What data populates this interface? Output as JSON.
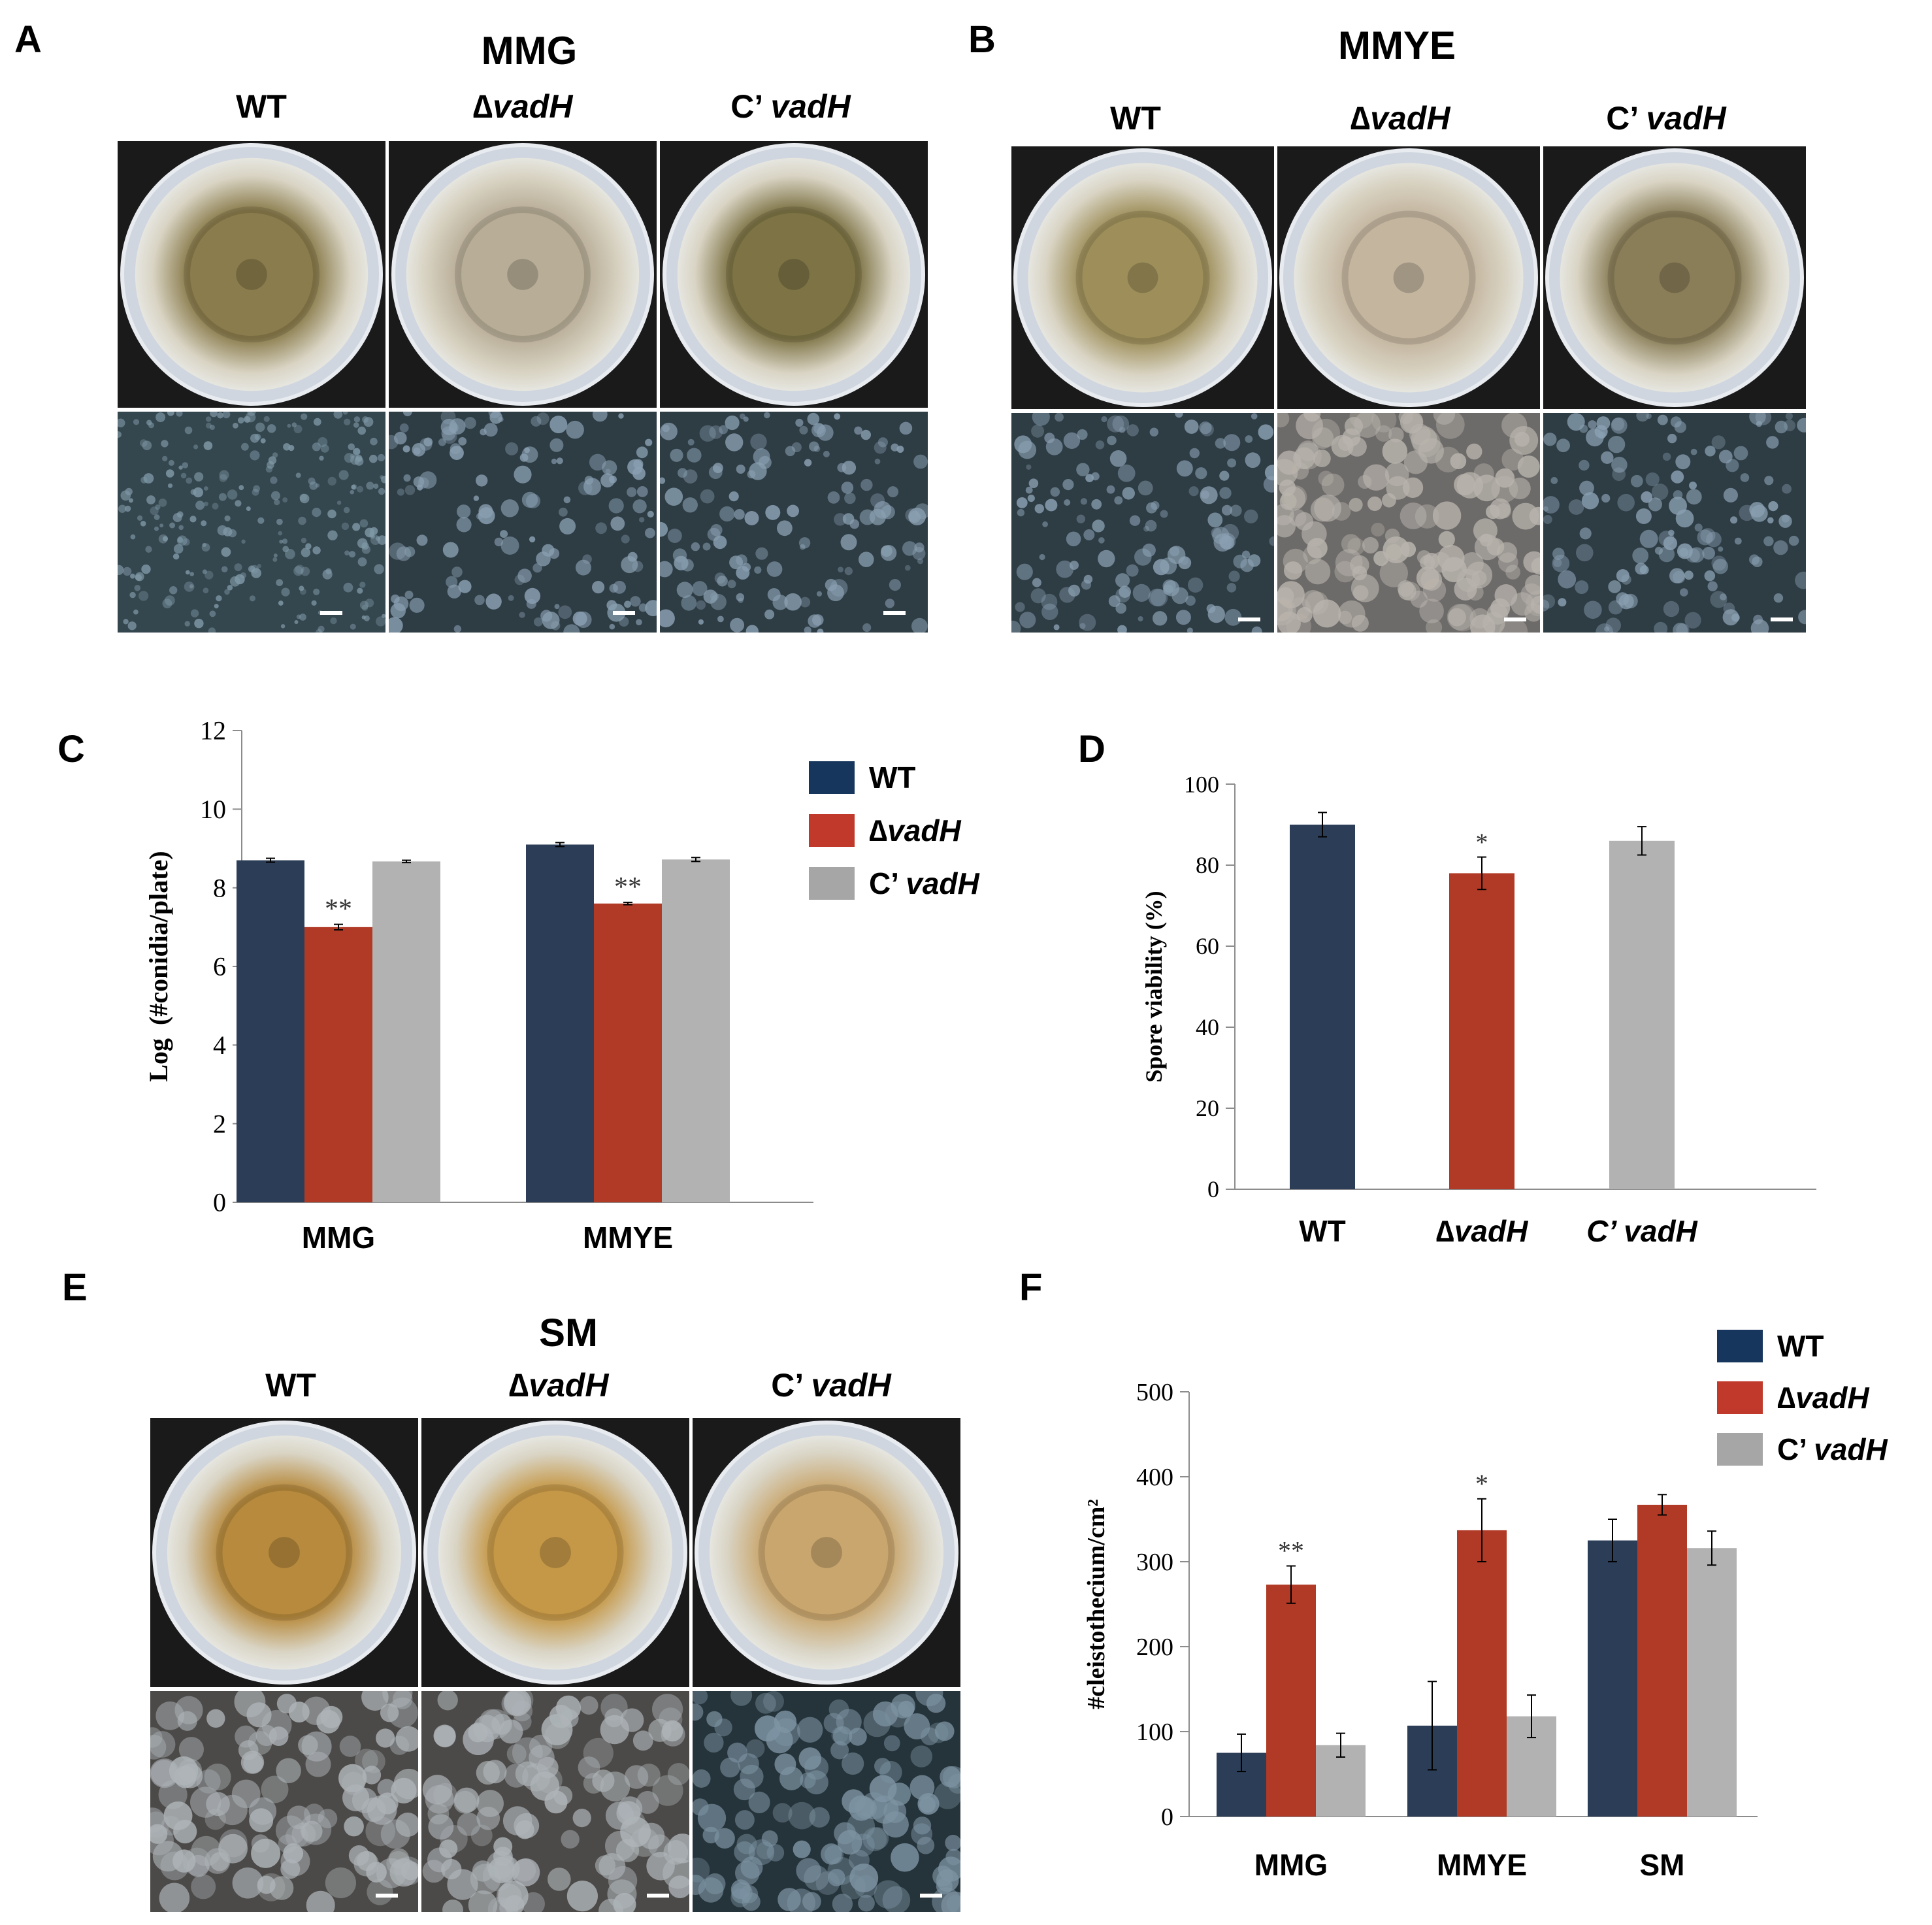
{
  "panel_labels": {
    "A": "A",
    "B": "B",
    "C": "C",
    "D": "D",
    "E": "E",
    "F": "F"
  },
  "strains": {
    "wt": "WT",
    "delta_prefix": "∆",
    "delta_gene": "vadH",
    "comp_prefix": "C’",
    "comp_gene": "vadH"
  },
  "panel_a": {
    "medium": "MMG",
    "plate_colors": [
      "#8a7c4c",
      "#b8ad97",
      "#7d7345"
    ]
  },
  "panel_b": {
    "medium": "MMYE",
    "plate_colors": [
      "#9e8f5a",
      "#c4b59f",
      "#8a7e58"
    ]
  },
  "panel_e": {
    "medium": "SM",
    "plate_colors": [
      "#b78a3d",
      "#c59847",
      "#c9a66d"
    ]
  },
  "colors": {
    "wt": "#2c3e57",
    "delta": "#b03a26",
    "comp": "#b2b2b2"
  },
  "chart_data": [
    {
      "panel": "C",
      "type": "bar",
      "categories": [
        "MMG",
        "MMYE"
      ],
      "series": [
        {
          "name": "WT",
          "values": [
            8.7,
            9.1
          ],
          "errors": [
            0.05,
            0.05
          ]
        },
        {
          "name": "∆vadH",
          "values": [
            7.0,
            7.6
          ],
          "errors": [
            0.07,
            0.03
          ]
        },
        {
          "name": "C’ vadH",
          "values": [
            8.67,
            8.72
          ],
          "errors": [
            0.03,
            0.05
          ]
        }
      ],
      "significance": [
        [
          "",
          "**",
          ""
        ],
        [
          "",
          "**",
          ""
        ]
      ],
      "ylabel": "Log  (#conidia/plate)",
      "ylim": [
        0,
        12
      ],
      "yticks": [
        "0",
        "2",
        "4",
        "6",
        "8",
        "10",
        "12"
      ],
      "legend": "right"
    },
    {
      "panel": "D",
      "type": "bar",
      "categories": [
        "WT",
        "∆vadH",
        "C’ vadH"
      ],
      "values": [
        90,
        78,
        86
      ],
      "errors": [
        3,
        4,
        3.5
      ],
      "significance": [
        "",
        "*",
        ""
      ],
      "ylabel": "Spore viability (%)",
      "ylim": [
        0,
        100
      ],
      "yticks": [
        "0",
        "20",
        "40",
        "60",
        "80",
        "100"
      ]
    },
    {
      "panel": "F",
      "type": "bar",
      "categories": [
        "MMG",
        "MMYE",
        "SM"
      ],
      "series": [
        {
          "name": "WT",
          "values": [
            75,
            107,
            325
          ],
          "errors": [
            22,
            52,
            25
          ]
        },
        {
          "name": "∆vadH",
          "values": [
            273,
            337,
            367
          ],
          "errors": [
            22,
            37,
            12
          ]
        },
        {
          "name": "C’ vadH",
          "values": [
            84,
            118,
            316
          ],
          "errors": [
            14,
            25,
            20
          ]
        }
      ],
      "significance": [
        [
          "",
          "**",
          ""
        ],
        [
          "",
          "*",
          ""
        ],
        [
          "",
          "",
          ""
        ]
      ],
      "ylabel": "#cleistothecium/cm²",
      "ylim": [
        0,
        500
      ],
      "yticks": [
        "0",
        "100",
        "200",
        "300",
        "400",
        "500"
      ],
      "legend": "top-right"
    }
  ]
}
